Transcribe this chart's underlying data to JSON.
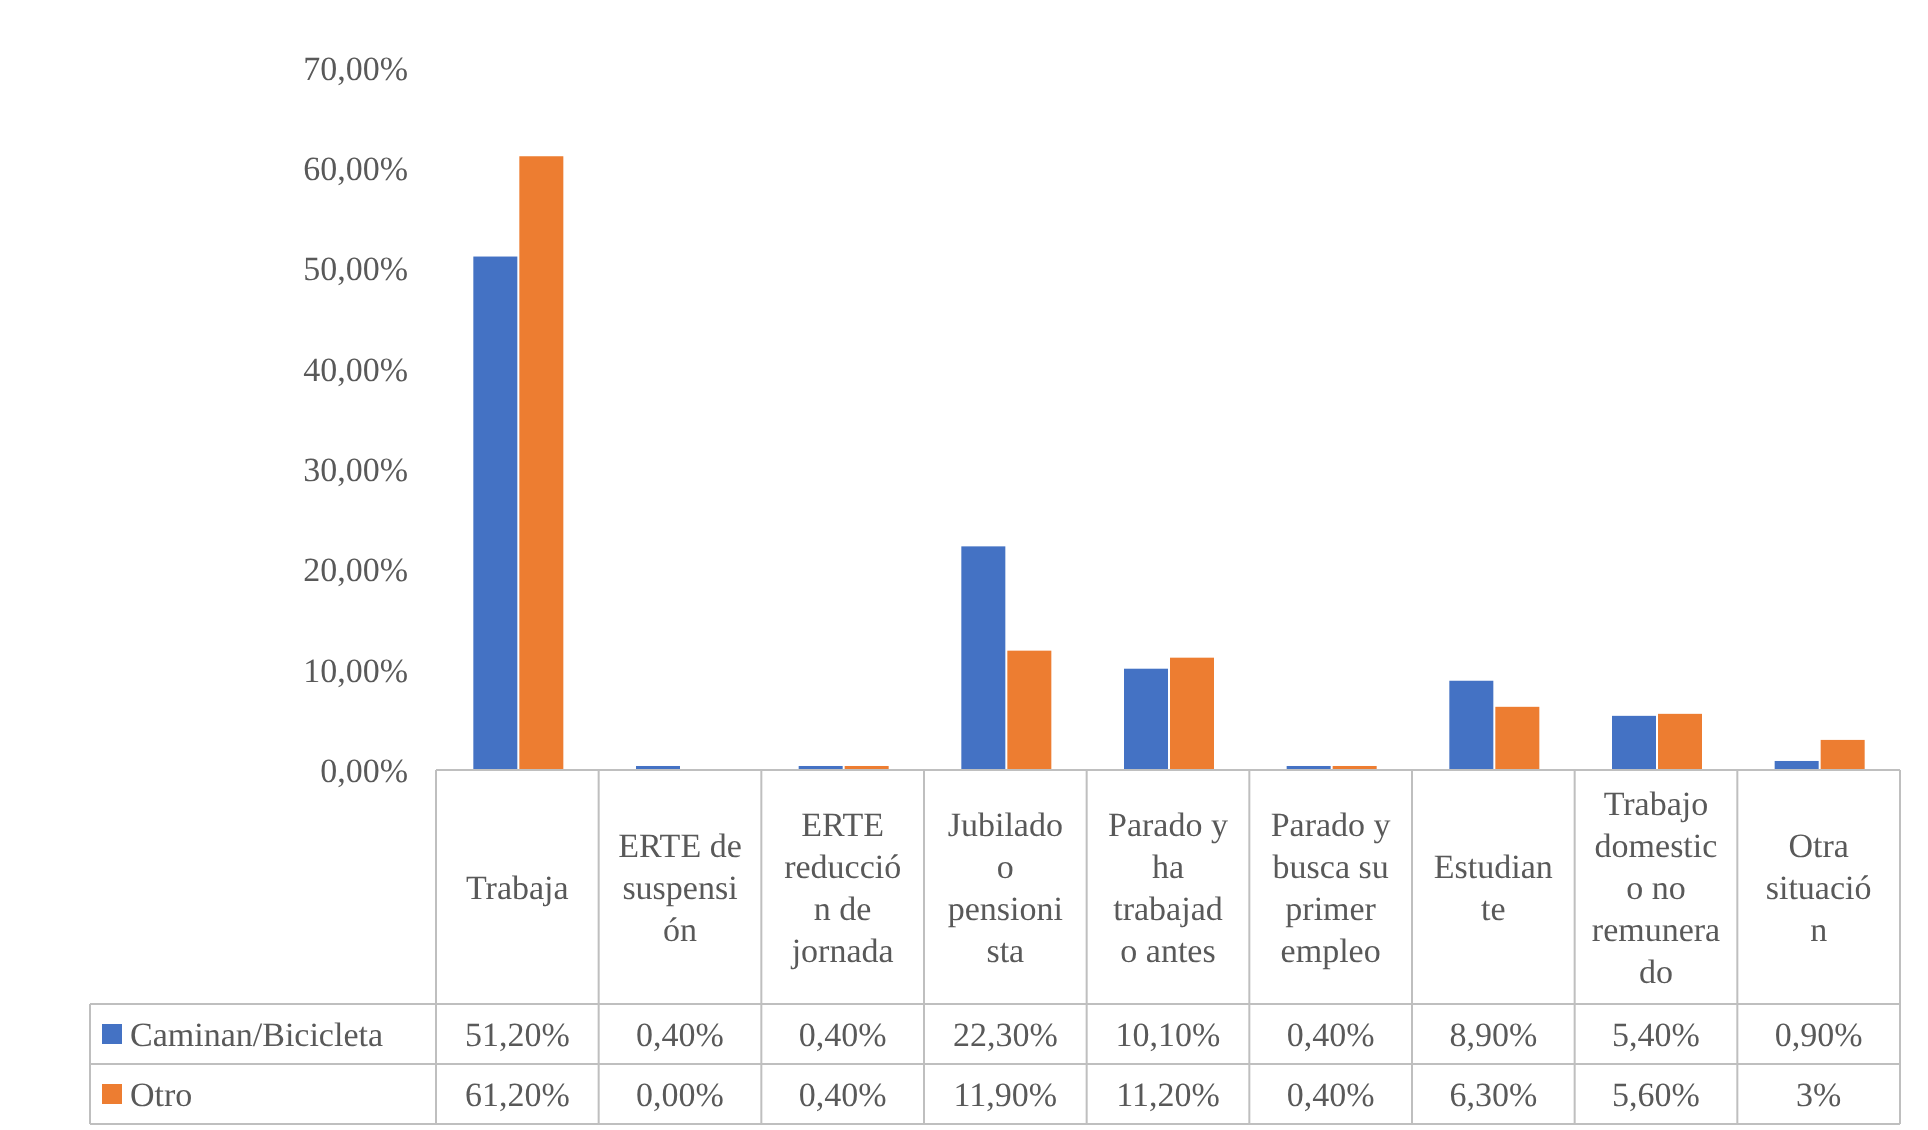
{
  "chart_data": {
    "type": "bar",
    "categories": [
      "Trabaja",
      "ERTE de suspensión",
      "ERTE reducción de jornada",
      "Jubilado o pensionista",
      "Parado y ha trabajado antes",
      "Parado y busca su primer empleo",
      "Estudiante",
      "Trabajo domestico no remunerado",
      "Otra situación"
    ],
    "series": [
      {
        "name": "Caminan/Bicicleta",
        "color": "#4472c4",
        "values": [
          51.2,
          0.4,
          0.4,
          22.3,
          10.1,
          0.4,
          8.9,
          5.4,
          0.9
        ],
        "value_labels": [
          "51,20%",
          "0,40%",
          "0,40%",
          "22,30%",
          "10,10%",
          "0,40%",
          "8,90%",
          "5,40%",
          "0,90%"
        ]
      },
      {
        "name": "Otro",
        "color": "#ed7d31",
        "values": [
          61.2,
          0.0,
          0.4,
          11.9,
          11.2,
          0.4,
          6.3,
          5.6,
          3
        ],
        "value_labels": [
          "61,20%",
          "0,00%",
          "0,40%",
          "11,90%",
          "11,20%",
          "0,40%",
          "6,30%",
          "5,60%",
          "3%"
        ]
      }
    ],
    "ylim": [
      0,
      70
    ],
    "yticks": [
      {
        "value": 0,
        "label": "0,00%"
      },
      {
        "value": 10,
        "label": "10,00%"
      },
      {
        "value": 20,
        "label": "20,00%"
      },
      {
        "value": 30,
        "label": "30,00%"
      },
      {
        "value": 40,
        "label": "40,00%"
      },
      {
        "value": 50,
        "label": "50,00%"
      },
      {
        "value": 60,
        "label": "60,00%"
      },
      {
        "value": 70,
        "label": "70,00%"
      }
    ],
    "grid": false,
    "legend": "bottom"
  }
}
